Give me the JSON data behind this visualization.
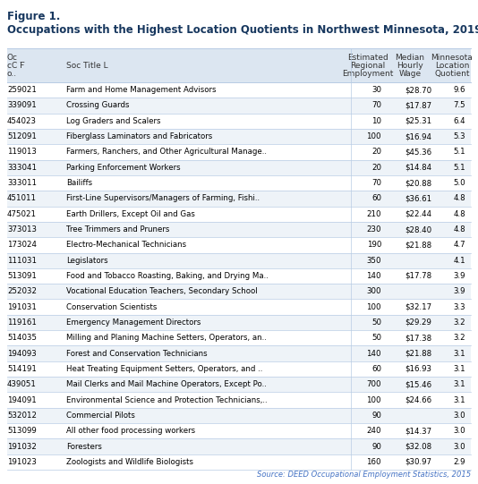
{
  "figure_label": "Figure 1.",
  "title": "Occupations with the Highest Location Quotients in Northwest Minnesota, 2019",
  "source": "Source: DEED Occupational Employment Statistics, 2015",
  "rows": [
    [
      "259021",
      "Farm and Home Management Advisors",
      "30",
      "$28.70",
      "9.6"
    ],
    [
      "339091",
      "Crossing Guards",
      "70",
      "$17.87",
      "7.5"
    ],
    [
      "454023",
      "Log Graders and Scalers",
      "10",
      "$25.31",
      "6.4"
    ],
    [
      "512091",
      "Fiberglass Laminators and Fabricators",
      "100",
      "$16.94",
      "5.3"
    ],
    [
      "119013",
      "Farmers, Ranchers, and Other Agricultural Manage..",
      "20",
      "$45.36",
      "5.1"
    ],
    [
      "333041",
      "Parking Enforcement Workers",
      "20",
      "$14.84",
      "5.1"
    ],
    [
      "333011",
      "Bailiffs",
      "70",
      "$20.88",
      "5.0"
    ],
    [
      "451011",
      "First-Line Supervisors/Managers of Farming, Fishi..",
      "60",
      "$36.61",
      "4.8"
    ],
    [
      "475021",
      "Earth Drillers, Except Oil and Gas",
      "210",
      "$22.44",
      "4.8"
    ],
    [
      "373013",
      "Tree Trimmers and Pruners",
      "230",
      "$28.40",
      "4.8"
    ],
    [
      "173024",
      "Electro-Mechanical Technicians",
      "190",
      "$21.88",
      "4.7"
    ],
    [
      "111031",
      "Legislators",
      "350",
      "",
      "4.1"
    ],
    [
      "513091",
      "Food and Tobacco Roasting, Baking, and Drying Ma..",
      "140",
      "$17.78",
      "3.9"
    ],
    [
      "252032",
      "Vocational Education Teachers, Secondary School",
      "300",
      "",
      "3.9"
    ],
    [
      "191031",
      "Conservation Scientists",
      "100",
      "$32.17",
      "3.3"
    ],
    [
      "119161",
      "Emergency Management Directors",
      "50",
      "$29.29",
      "3.2"
    ],
    [
      "514035",
      "Milling and Planing Machine Setters, Operators, an..",
      "50",
      "$17.38",
      "3.2"
    ],
    [
      "194093",
      "Forest and Conservation Technicians",
      "140",
      "$21.88",
      "3.1"
    ],
    [
      "514191",
      "Heat Treating Equipment Setters, Operators, and ..",
      "60",
      "$16.93",
      "3.1"
    ],
    [
      "439051",
      "Mail Clerks and Mail Machine Operators, Except Po..",
      "700",
      "$15.46",
      "3.1"
    ],
    [
      "194091",
      "Environmental Science and Protection Technicians,..",
      "100",
      "$24.66",
      "3.1"
    ],
    [
      "532012",
      "Commercial Pilots",
      "90",
      "",
      "3.0"
    ],
    [
      "513099",
      "All other food processing workers",
      "240",
      "$14.37",
      "3.0"
    ],
    [
      "191032",
      "Foresters",
      "90",
      "$32.08",
      "3.0"
    ],
    [
      "191023",
      "Zoologists and Wildlife Biologists",
      "160",
      "$30.97",
      "2.9"
    ]
  ],
  "header_bg": "#dce6f1",
  "row_bg_even": "#ffffff",
  "row_bg_odd": "#eef3f8",
  "border_color": "#b8cce4",
  "text_color": "#000000",
  "title_color": "#17375e",
  "source_color": "#4472c4",
  "header_label_line1": "Oc",
  "header_label_line2": "cC F̅",
  "header_label_line3": "o..",
  "header_col1": "Soc Title L",
  "header_col2_line1": "Estimated",
  "header_col2_line2": "Regional",
  "header_col2_line3": "Employment",
  "header_col3_line1": "Median",
  "header_col3_line2": "Hourly",
  "header_col3_line3": "Wage",
  "header_col4_line1": "Minnesota",
  "header_col4_line2": "Location",
  "header_col4_line3": "Quotient"
}
